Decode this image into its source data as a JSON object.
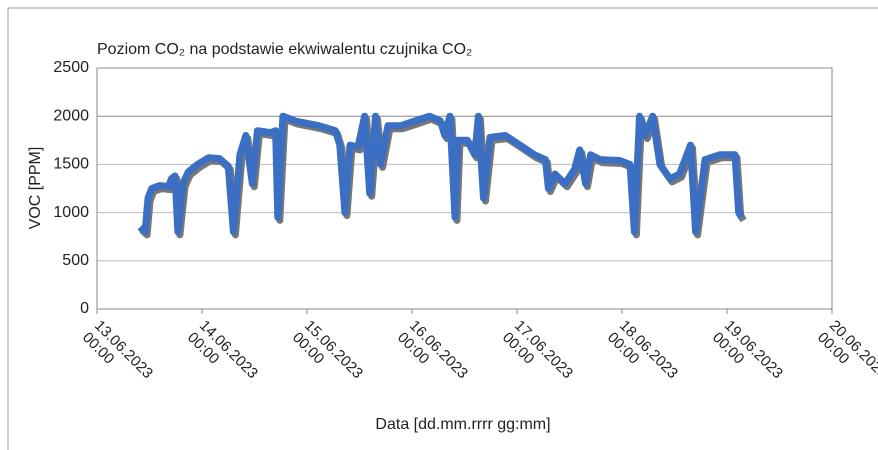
{
  "chart_data": {
    "type": "line",
    "title": "Poziom CO₂ na podstawie ekwiwalentu czujnika CO₂",
    "x_label": "Data [dd.mm.rrrr gg:mm]",
    "y_label": "VOC [PPM]",
    "xlim": [
      "13.06.2023 00:00",
      "20.06.2023 00:00"
    ],
    "xticks": [
      "13.06.2023 00:00",
      "14.06.2023 00:00",
      "15.06.2023 00:00",
      "16.06.2023 00:00",
      "17.06.2023 00:00",
      "18.06.2023 00:00",
      "19.06.2023 00:00",
      "20.06.2023 00:00"
    ],
    "ylim": [
      0,
      2500
    ],
    "yticks": [
      0,
      500,
      1000,
      1500,
      2000,
      2500
    ],
    "grid": true,
    "series": [
      {
        "name": "VOC",
        "color": "#3a6fc4",
        "x": [
          "13.06.2023 09:50",
          "13.06.2023 11:00",
          "13.06.2023 11:40",
          "13.06.2023 12:30",
          "13.06.2023 14:20",
          "13.06.2023 16:20",
          "13.06.2023 17:00",
          "13.06.2023 17:50",
          "13.06.2023 18:30",
          "13.06.2023 19:40",
          "13.06.2023 20:50",
          "13.06.2023 23:00",
          "14.06.2023 01:30",
          "14.06.2023 04:00",
          "14.06.2023 06:00",
          "14.06.2023 07:10",
          "14.06.2023 08:40",
          "14.06.2023 10:00",
          "14.06.2023 11:30",
          "14.06.2023 12:40",
          "14.06.2023 15:40",
          "14.06.2023 16:50",
          "14.06.2023 17:20",
          "14.06.2023 18:30",
          "14.06.2023 21:20",
          "15.06.2023 02:50",
          "15.06.2023 06:30",
          "15.06.2023 07:30",
          "15.06.2023 08:40",
          "15.06.2023 09:50",
          "15.06.2023 11:40",
          "15.06.2023 13:10",
          "15.06.2023 14:20",
          "15.06.2023 15:40",
          "15.06.2023 16:50",
          "15.06.2023 18:30",
          "15.06.2023 21:20",
          "16.06.2023 00:40",
          "16.06.2023 04:00",
          "16.06.2023 06:30",
          "16.06.2023 07:30",
          "16.06.2023 08:40",
          "16.06.2023 09:50",
          "16.06.2023 10:30",
          "16.06.2023 12:40",
          "16.06.2023 14:20",
          "16.06.2023 15:10",
          "16.06.2023 16:20",
          "16.06.2023 17:50",
          "16.06.2023 21:20",
          "17.06.2023 00:40",
          "17.06.2023 04:00",
          "17.06.2023 06:30",
          "17.06.2023 07:10",
          "17.06.2023 08:40",
          "17.06.2023 11:00",
          "17.06.2023 13:10",
          "17.06.2023 14:20",
          "17.06.2023 15:40",
          "17.06.2023 16:50",
          "17.06.2023 19:00",
          "17.06.2023 23:30",
          "18.06.2023 01:50",
          "18.06.2023 02:50",
          "18.06.2023 04:00",
          "18.06.2023 05:20",
          "18.06.2023 07:00",
          "18.06.2023 08:40",
          "18.06.2023 11:00",
          "18.06.2023 13:10",
          "18.06.2023 15:40",
          "18.06.2023 16:50",
          "18.06.2023 19:00",
          "18.06.2023 22:20",
          "19.06.2023 01:50",
          "19.06.2023 02:40",
          "19.06.2023 03:20"
        ],
        "values": [
          850,
          800,
          1150,
          1250,
          1280,
          1270,
          1350,
          1380,
          800,
          1300,
          1420,
          1500,
          1570,
          1560,
          1480,
          800,
          1600,
          1800,
          1300,
          1850,
          1830,
          1850,
          950,
          2000,
          1950,
          1900,
          1850,
          1700,
          1000,
          1700,
          1680,
          2000,
          1200,
          2000,
          1500,
          1900,
          1900,
          1950,
          2000,
          1950,
          1800,
          2000,
          950,
          1750,
          1750,
          1600,
          2000,
          1150,
          1780,
          1800,
          1700,
          1600,
          1550,
          1250,
          1400,
          1300,
          1450,
          1650,
          1300,
          1600,
          1550,
          1540,
          1500,
          800,
          2000,
          1800,
          2000,
          1500,
          1350,
          1400,
          1700,
          800,
          1550,
          1600,
          1600,
          1000,
          950
        ]
      }
    ]
  }
}
